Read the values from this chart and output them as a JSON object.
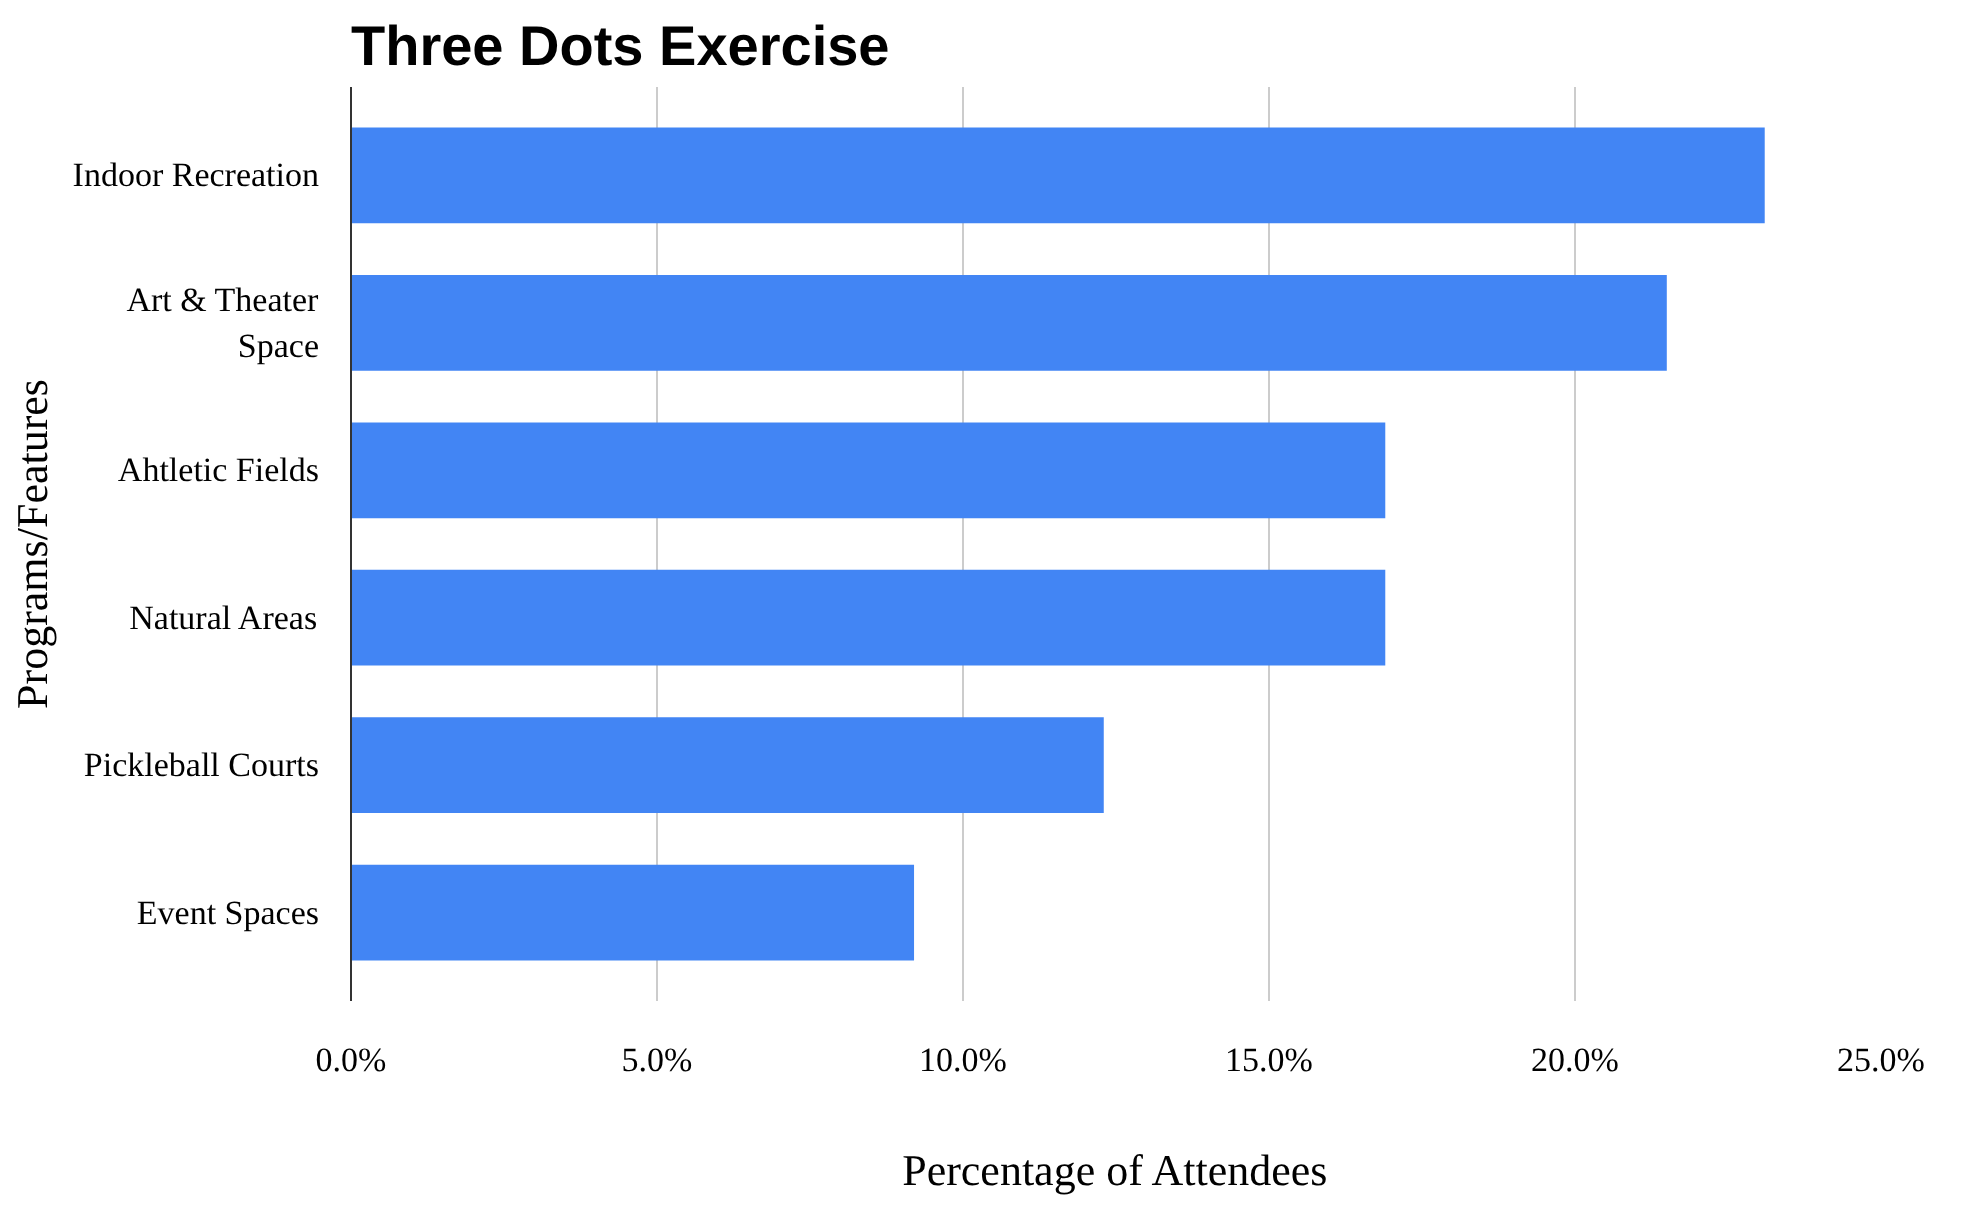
{
  "chart_data": {
    "type": "bar",
    "orientation": "horizontal",
    "title": "Three Dots Exercise",
    "xlabel": "Percentage of Attendees",
    "ylabel": "Programs/Features",
    "categories": [
      "Indoor Recreation",
      "Art & Theater Space",
      "Ahtletic Fields",
      "Natural Areas",
      "Pickleball Courts",
      "Event Spaces"
    ],
    "values": [
      23.1,
      21.5,
      16.9,
      16.9,
      12.3,
      9.2
    ],
    "color": "#4285f4",
    "xlim": [
      0,
      25
    ],
    "xticks": [
      {
        "value": 0,
        "label": "0.0%"
      },
      {
        "value": 5,
        "label": "5.0%"
      },
      {
        "value": 10,
        "label": "10.0%"
      },
      {
        "value": 15,
        "label": "15.0%"
      },
      {
        "value": 20,
        "label": "20.0%"
      },
      {
        "value": 25,
        "label": "25.0%"
      }
    ],
    "grid": "x"
  }
}
